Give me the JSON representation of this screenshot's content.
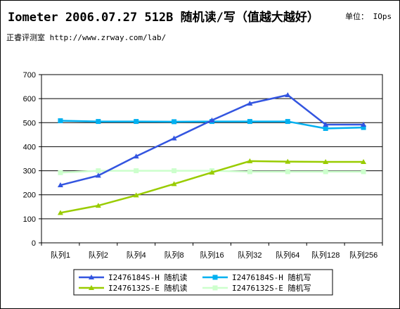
{
  "header": {
    "title": "Iometer 2006.07.27 512B 随机读/写（值越大越好）",
    "unit": "单位： IOps",
    "subtitle": "正睿评测室 http://www.zrway.com/lab/"
  },
  "chart_data": {
    "type": "line",
    "categories": [
      "队列1",
      "队列2",
      "队列4",
      "队列8",
      "队列16",
      "队列32",
      "队列64",
      "队列128",
      "队列256"
    ],
    "ylim": [
      0,
      700
    ],
    "yticks": [
      0,
      100,
      200,
      300,
      400,
      500,
      600,
      700
    ],
    "grid": true,
    "legend": "bottom",
    "series": [
      {
        "name": "I2476184S-H 随机读",
        "color": "#3355e0",
        "marker": "triangle",
        "values": [
          240,
          280,
          360,
          435,
          510,
          580,
          615,
          492,
          492
        ]
      },
      {
        "name": "I2476184S-H 随机写",
        "color": "#00b0f0",
        "marker": "square",
        "values": [
          508,
          505,
          505,
          504,
          505,
          505,
          505,
          476,
          480
        ]
      },
      {
        "name": "I2476132S-E 随机读",
        "color": "#99cc00",
        "marker": "triangle",
        "values": [
          125,
          155,
          198,
          245,
          293,
          340,
          338,
          337,
          337
        ]
      },
      {
        "name": "I2476132S-E 随机写",
        "color": "#ccffcc",
        "marker": "square",
        "values": [
          292,
          300,
          300,
          300,
          300,
          296,
          296,
          296,
          296
        ]
      }
    ]
  }
}
